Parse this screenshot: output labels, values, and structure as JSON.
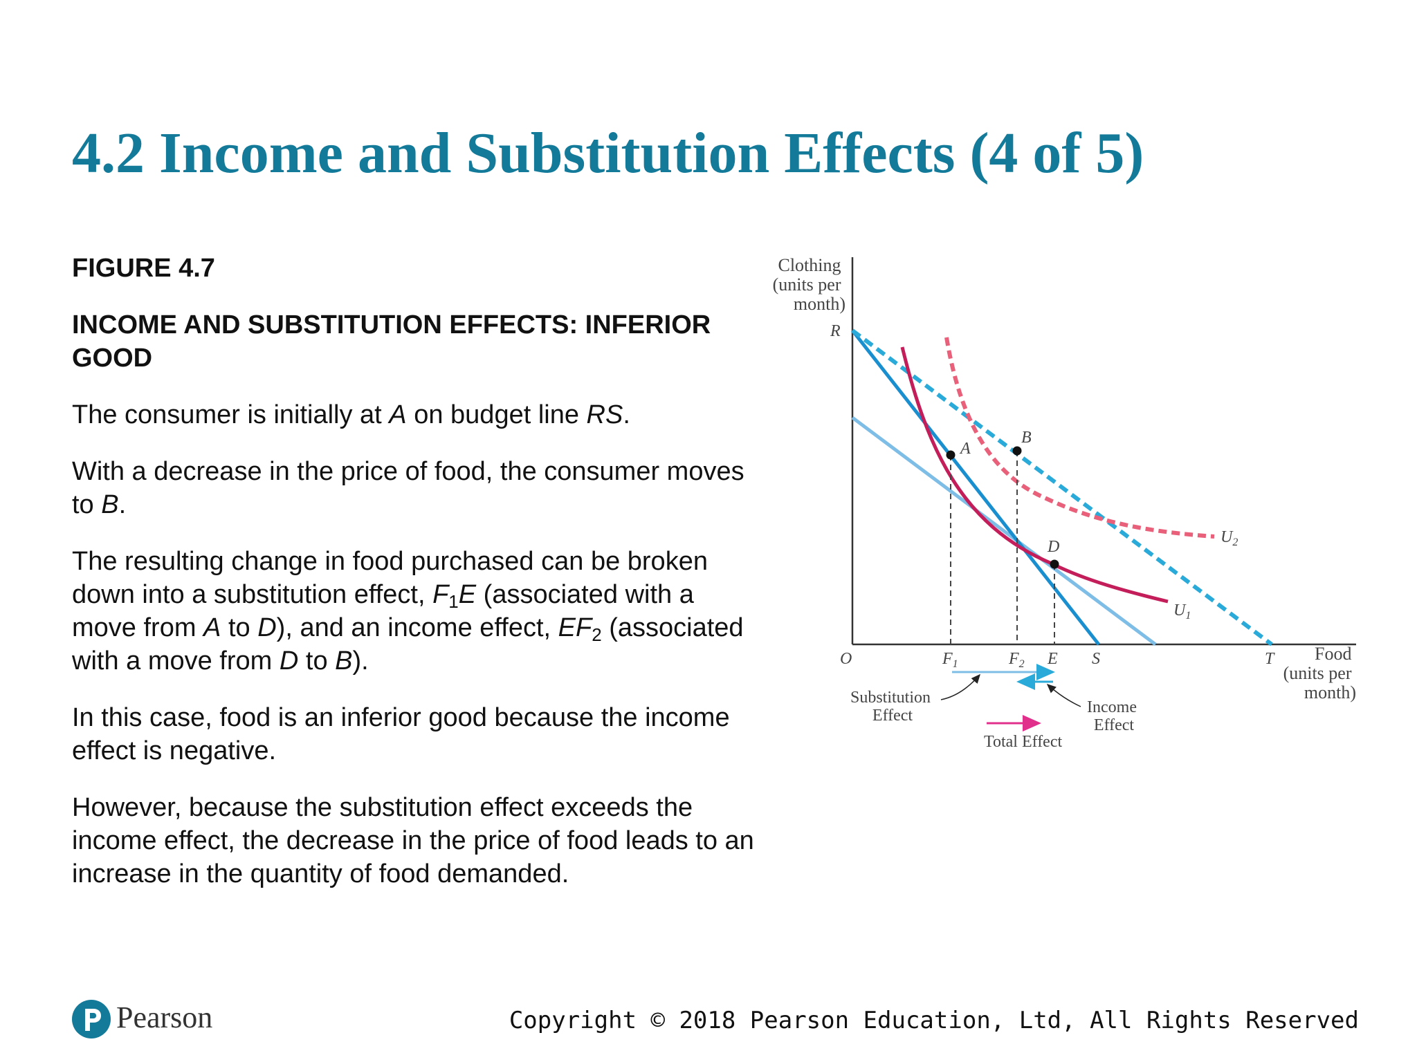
{
  "slide": {
    "title": "4.2 Income and Substitution Effects (4 of 5)",
    "figure_label": "FIGURE 4.7",
    "figure_caption": "INCOME AND SUBSTITUTION EFFECTS: INFERIOR GOOD",
    "paragraphs": {
      "p1": [
        "The consumer is initially at ",
        "A",
        " on budget line ",
        "RS",
        "."
      ],
      "p2": [
        "With a decrease in the price of food, the consumer moves to ",
        "B",
        "."
      ],
      "p3": [
        "The resulting change in food purchased can be broken down into a substitution effect, ",
        "F",
        "1",
        "E",
        " (associated with a move from ",
        "A",
        " to ",
        "D",
        "), and an income effect, ",
        "EF",
        "2",
        " (associated with a move from ",
        "D",
        " to ",
        "B",
        ")."
      ],
      "p4": "In this case, food is an inferior good because the income effect is negative.",
      "p5": "However, because the substitution effect exceeds the income effect, the decrease in the price of food leads to an increase in the quantity of food demanded."
    }
  },
  "footer": {
    "brand": "Pearson",
    "copyright": "Copyright © 2018 Pearson Education, Ltd, All Rights Reserved"
  },
  "diagram": {
    "y_axis_label": [
      "Clothing",
      "(units per",
      "month)"
    ],
    "x_axis_label": [
      "Food",
      "(units per",
      "month)"
    ],
    "origin_label": "O",
    "intercept_labels": {
      "R": "R",
      "S": "S",
      "T": "T"
    },
    "tick_labels": {
      "F1": "F",
      "F1_sub": "1",
      "F2": "F",
      "F2_sub": "2",
      "E": "E"
    },
    "point_labels": {
      "A": "A",
      "B": "B",
      "D": "D"
    },
    "curve_labels": {
      "U1": "U",
      "U1_sub": "1",
      "U2": "U",
      "U2_sub": "2"
    },
    "effect_labels": {
      "substitution": [
        "Substitution",
        "Effect"
      ],
      "income": [
        "Income",
        "Effect"
      ],
      "total": "Total Effect"
    },
    "colors": {
      "budget_line": "#1a8fd0",
      "budget_new": "#2aaad8",
      "budget_parallel": "#7dbde6",
      "u1": "#c41e5a",
      "u2": "#e8607a",
      "total_arrow": "#e0308c",
      "title": "#137a9a"
    }
  }
}
